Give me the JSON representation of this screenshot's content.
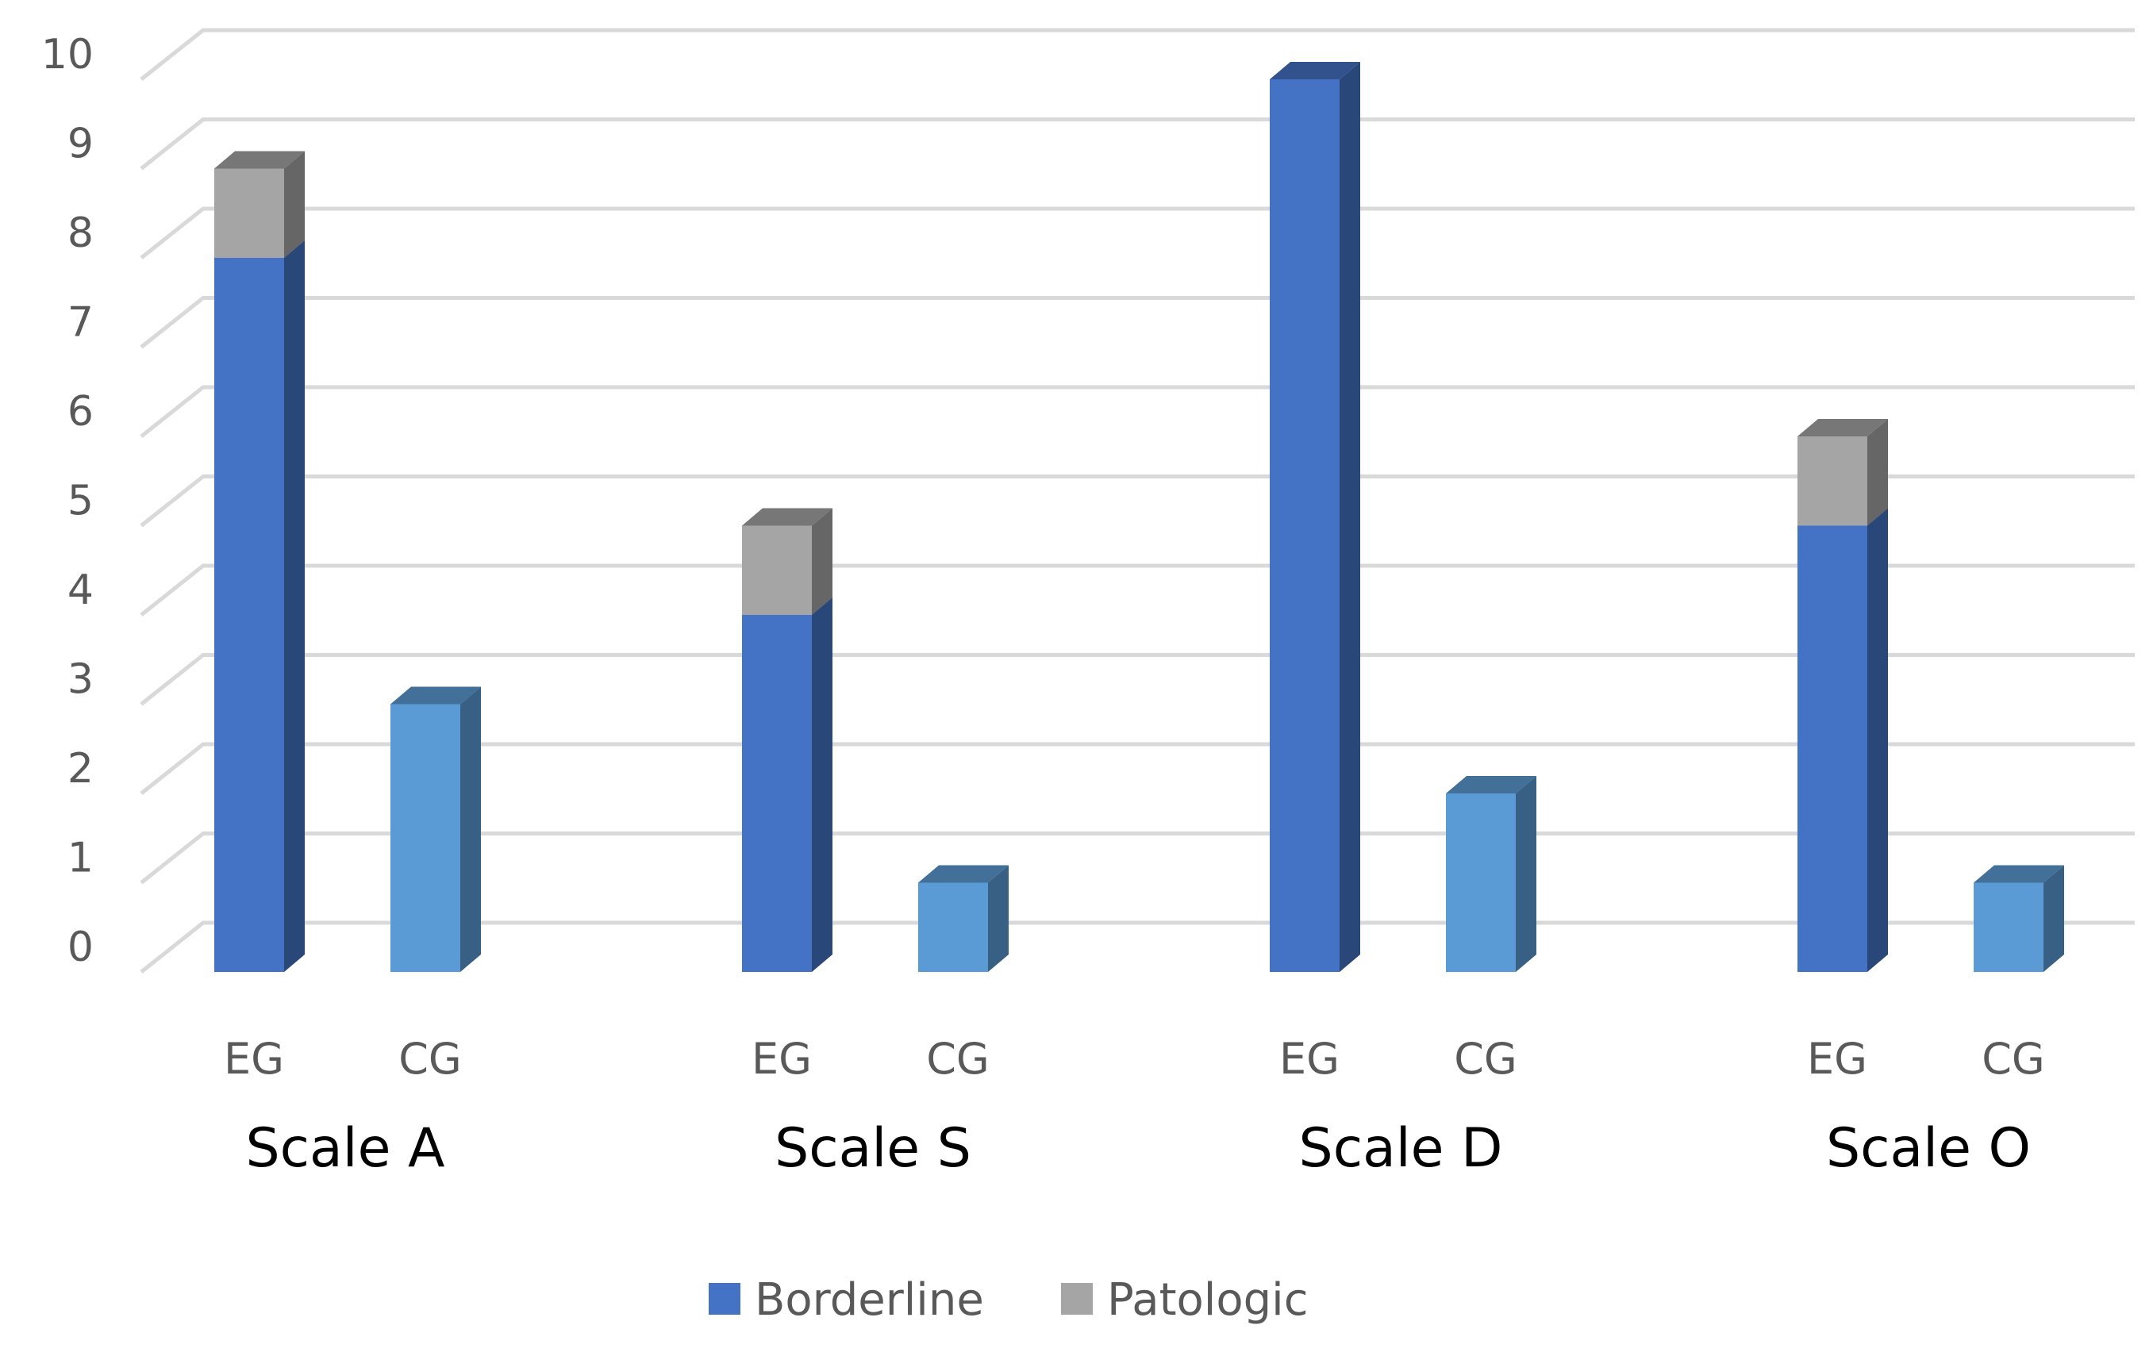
{
  "chart_data": {
    "type": "bar",
    "stacked": true,
    "groups": [
      "Scale A",
      "Scale S",
      "Scale D",
      "Scale O"
    ],
    "subcategories": [
      "EG",
      "CG"
    ],
    "series": [
      {
        "name": "Borderline",
        "color": "#4472C4",
        "values": [
          [
            8,
            3
          ],
          [
            4,
            1
          ],
          [
            10,
            2
          ],
          [
            5,
            1
          ]
        ]
      },
      {
        "name": "Patologic",
        "color": "#A5A5A5",
        "values": [
          [
            1,
            0
          ],
          [
            1,
            0
          ],
          [
            0,
            0
          ],
          [
            1,
            0
          ]
        ]
      }
    ],
    "cg_color": "#5B9BD5",
    "ylim": [
      0,
      10
    ],
    "yticks": [
      "0",
      "1",
      "2",
      "3",
      "4",
      "5",
      "6",
      "7",
      "8",
      "9",
      "10"
    ],
    "grid": true,
    "legend_position": "bottom"
  }
}
